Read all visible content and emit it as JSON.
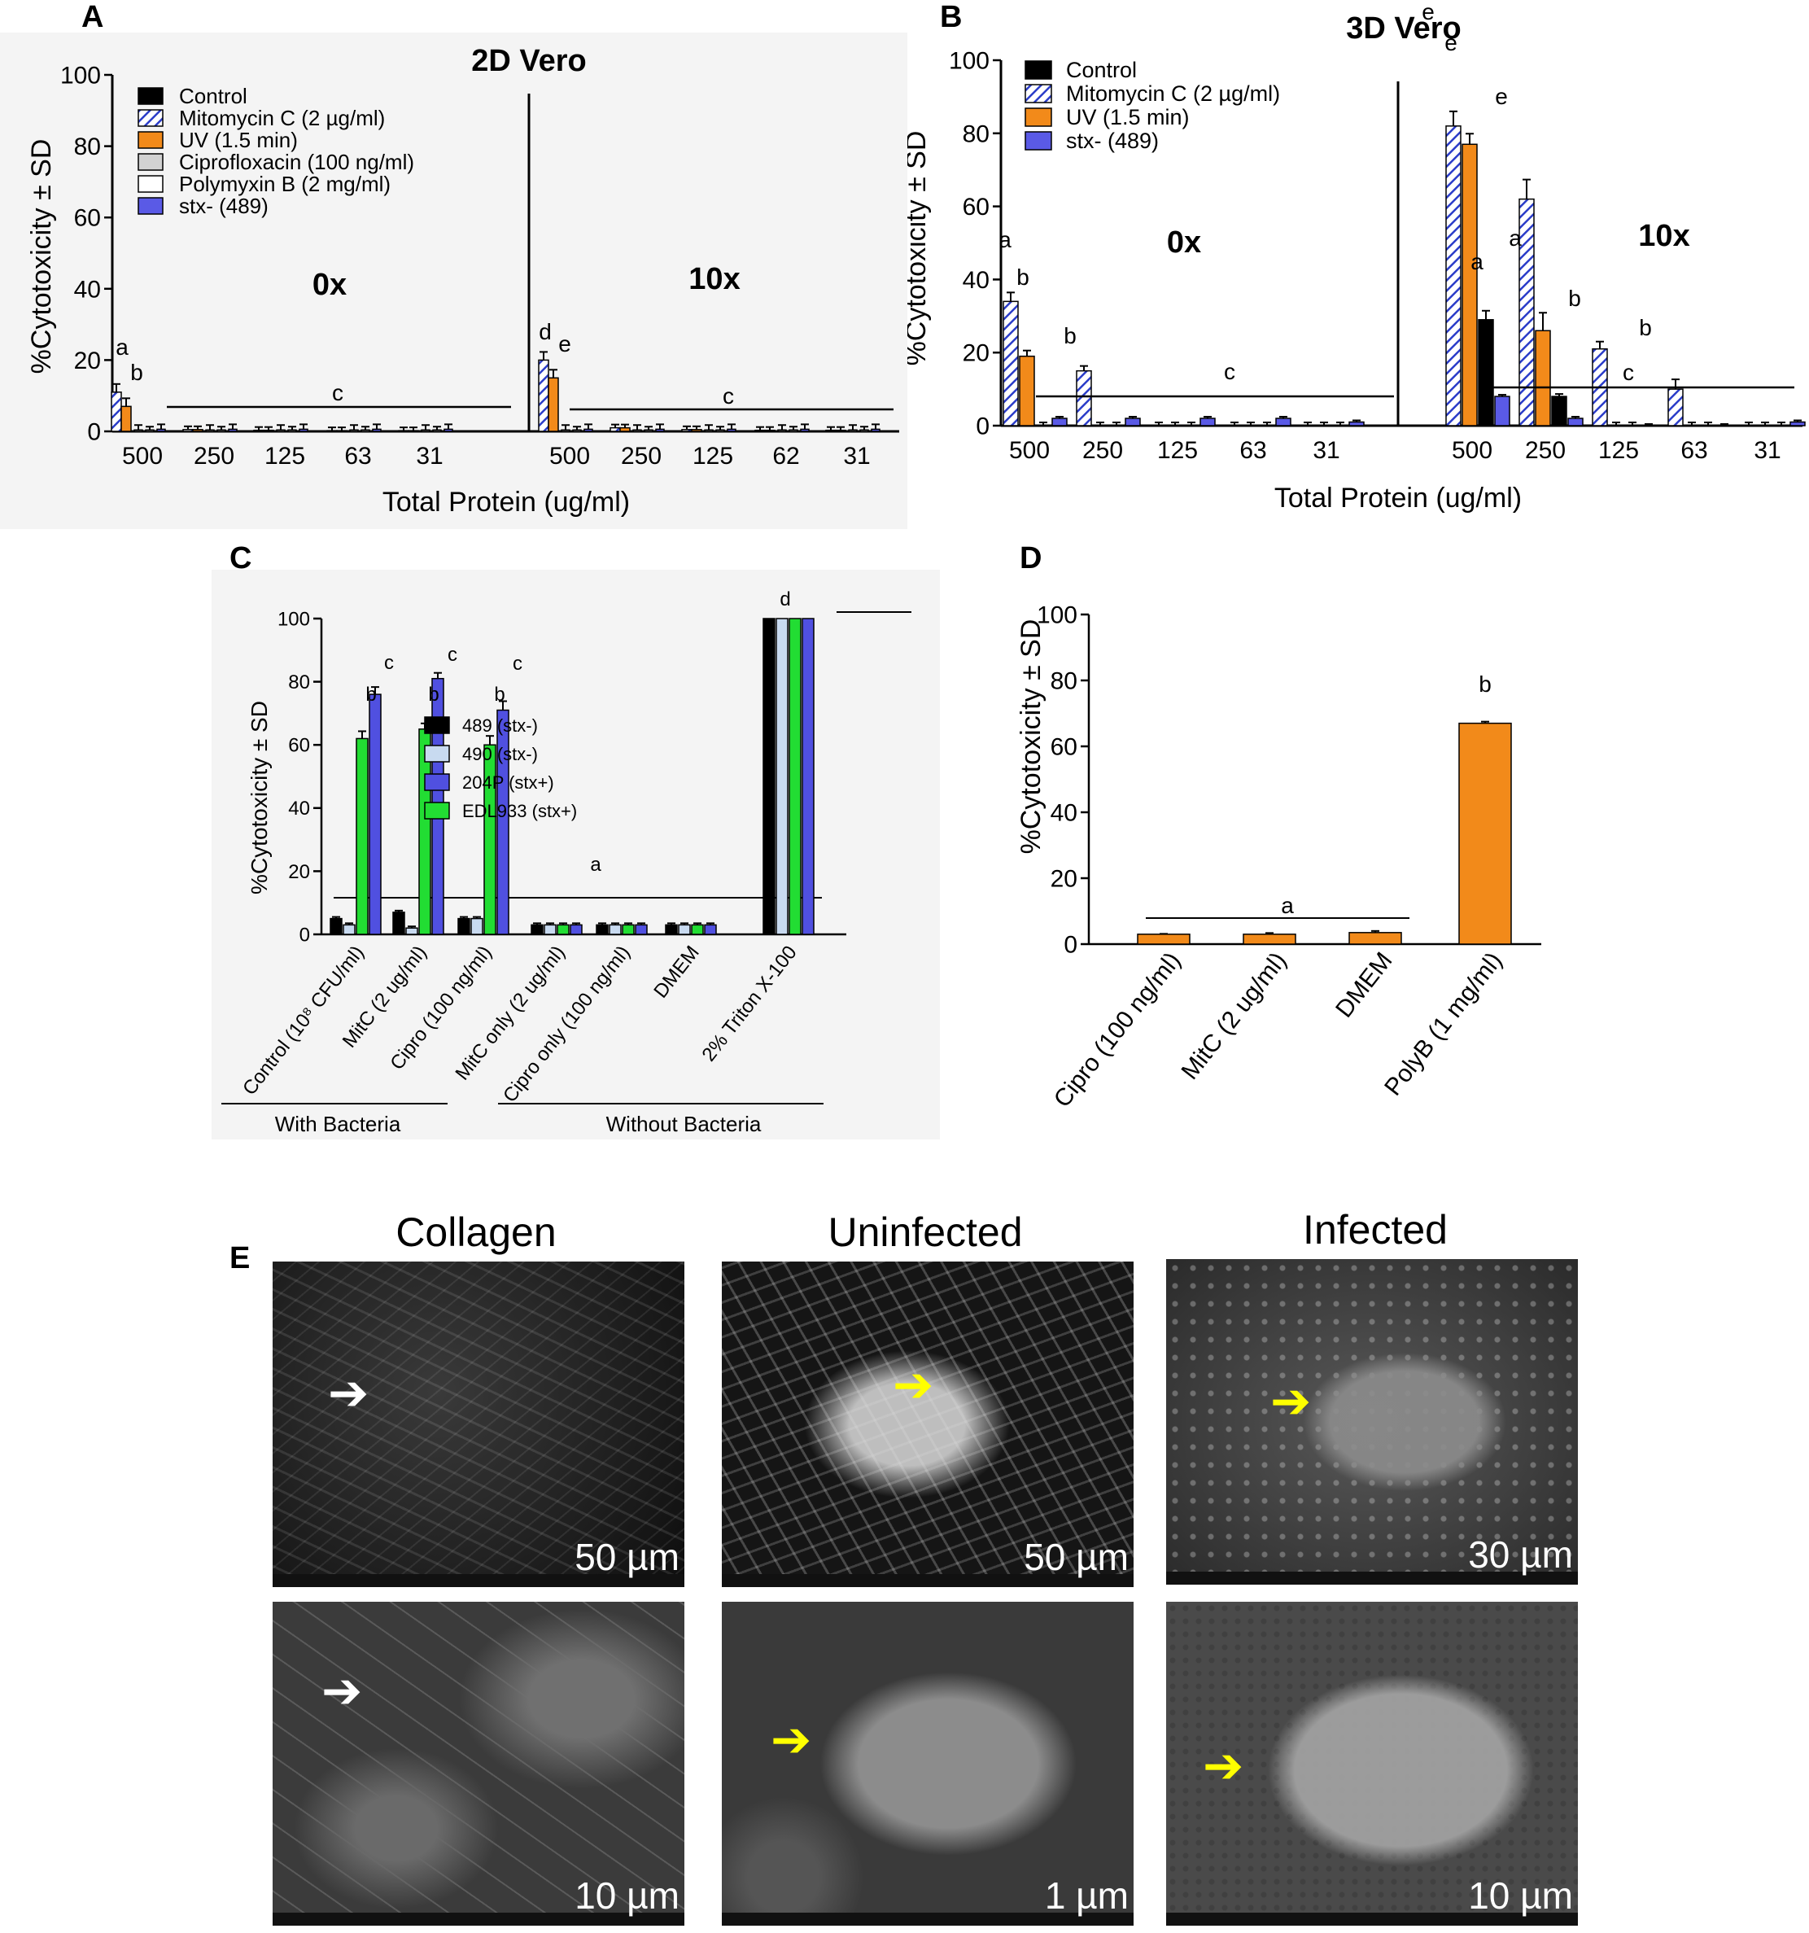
{
  "colors": {
    "control": "#000000",
    "mitomycin": "#2a3cc8",
    "uv": "#f28a1a",
    "ciprofloxacin": "#d2d2d2",
    "polymyxin": "#ffffff",
    "stx489": "#5a5ae6",
    "s490": "#c8daf0",
    "s204p": "#5050e0",
    "edl933": "#22dd33"
  },
  "chart_data": [
    {
      "panel": "A",
      "type": "bar",
      "title": "2D Vero",
      "xlabel": "Total Protein (ug/ml)",
      "ylabel": "%Cytotoxicity ± SD",
      "ylim": [
        0,
        100
      ],
      "yticks": [
        "0",
        "20",
        "40",
        "60",
        "80",
        "100"
      ],
      "groups": [
        {
          "label": "0x",
          "categories": [
            "500",
            "250",
            "125",
            "63",
            "31"
          ]
        },
        {
          "label": "10x",
          "categories": [
            "500",
            "250",
            "125",
            "62",
            "31"
          ]
        }
      ],
      "legend": [
        "Control",
        "Mitomycin C (2 µg/ml)",
        "UV (1.5 min)",
        "Ciprofloxacin (100 ng/ml)",
        "Polymyxin B (2 mg/ml)",
        "stx- (489)"
      ],
      "series": [
        {
          "name": "Mitomycin C (2 µg/ml)",
          "values": [
            [
              11,
              0.5,
              0.3,
              0.2,
              0.2
            ],
            [
              20,
              1,
              0.5,
              0.3,
              0.3
            ]
          ]
        },
        {
          "name": "UV (1.5 min)",
          "values": [
            [
              7,
              0.5,
              0.3,
              0.2,
              0.2
            ],
            [
              15,
              1,
              0.5,
              0.3,
              0.3
            ]
          ]
        }
      ],
      "annotations": [
        "a",
        "b",
        "c",
        "d",
        "e",
        "c"
      ]
    },
    {
      "panel": "B",
      "type": "bar",
      "title": "3D Vero",
      "xlabel": "Total Protein (ug/ml)",
      "ylabel": "%Cytotoxicity ± SD",
      "ylim": [
        0,
        100
      ],
      "yticks": [
        "0",
        "20",
        "40",
        "60",
        "80",
        "100"
      ],
      "groups": [
        {
          "label": "0x",
          "categories": [
            "500",
            "250",
            "125",
            "63",
            "31"
          ]
        },
        {
          "label": "10x",
          "categories": [
            "500",
            "250",
            "125",
            "63",
            "31"
          ]
        }
      ],
      "legend": [
        "Control",
        "Mitomycin C (2 µg/ml)",
        "UV (1.5 min)",
        "stx- (489)"
      ],
      "series": [
        {
          "name": "Control",
          "values": [
            [
              0,
              0,
              0,
              0,
              0
            ],
            [
              29,
              8,
              0,
              0,
              0
            ]
          ]
        },
        {
          "name": "Mitomycin C (2 µg/ml)",
          "values": [
            [
              34,
              15,
              0,
              0,
              0
            ],
            [
              82,
              62,
              21,
              10,
              0
            ]
          ]
        },
        {
          "name": "UV (1.5 min)",
          "values": [
            [
              19,
              0,
              0,
              0,
              0
            ],
            [
              77,
              26,
              0,
              0,
              0
            ]
          ]
        },
        {
          "name": "stx- (489)",
          "values": [
            [
              2,
              2,
              2,
              2,
              1
            ],
            [
              8,
              2,
              0,
              0,
              1
            ]
          ]
        }
      ],
      "annotations": [
        "a",
        "b",
        "b",
        "c",
        "e",
        "e",
        "a",
        "e",
        "a",
        "b",
        "c",
        "b"
      ]
    },
    {
      "panel": "C",
      "type": "bar",
      "ylabel": "%Cytotoxicity ± SD",
      "ylim": [
        0,
        100
      ],
      "yticks": [
        "0",
        "20",
        "40",
        "60",
        "80",
        "100"
      ],
      "categories": [
        "Control (10⁸ CFU/ml)",
        "MitC (2 ug/ml)",
        "Cipro (100 ng/ml)",
        "MitC only (2 ug/ml)",
        "Cipro only (100 ng/ml)",
        "DMEM",
        "2% Triton X-100"
      ],
      "group_labels": [
        "With Bacteria",
        "Without Bacteria"
      ],
      "legend": [
        "489 (stx-)",
        "490 (stx-)",
        "204P (stx+)",
        "EDL933 (stx+)"
      ],
      "series": [
        {
          "name": "489 (stx-)",
          "values": [
            5,
            7,
            5,
            3,
            3,
            3,
            100
          ]
        },
        {
          "name": "490 (stx-)",
          "values": [
            3,
            2,
            5,
            3,
            3,
            3,
            100
          ]
        },
        {
          "name": "EDL933 (stx+)",
          "values": [
            62,
            65,
            60,
            3,
            3,
            3,
            100
          ]
        },
        {
          "name": "204P (stx+)",
          "values": [
            76,
            81,
            71,
            3,
            3,
            3,
            100
          ]
        }
      ],
      "annotations": [
        "b",
        "c",
        "b",
        "c",
        "b",
        "c",
        "a",
        "d"
      ]
    },
    {
      "panel": "D",
      "type": "bar",
      "ylabel": "%Cytotoxicity ± SD",
      "ylim": [
        0,
        100
      ],
      "yticks": [
        "0",
        "20",
        "40",
        "60",
        "80",
        "100"
      ],
      "categories": [
        "Cipro (100 ng/ml)",
        "MitC (2 ug/ml)",
        "DMEM",
        "PolyB (1 mg/ml)"
      ],
      "values": [
        3,
        3,
        3.5,
        67
      ],
      "annotations": [
        "a",
        "b"
      ]
    }
  ],
  "panel_letters": {
    "a": "A",
    "b": "B",
    "c": "C",
    "d": "D",
    "e": "E"
  },
  "text": {
    "a_0x": "0x",
    "a_10x": "10x",
    "b_0x": "0x",
    "b_10x": "10x",
    "c_with": "With Bacteria",
    "c_without": "Without Bacteria"
  },
  "microscopy": {
    "columns": [
      "Collagen",
      "Uninfected",
      "Infected"
    ],
    "scales_top": [
      "50 µm",
      "50 µm",
      "30 µm"
    ],
    "scales_bottom": [
      "10 µm",
      "1 µm",
      "10 µm"
    ]
  }
}
